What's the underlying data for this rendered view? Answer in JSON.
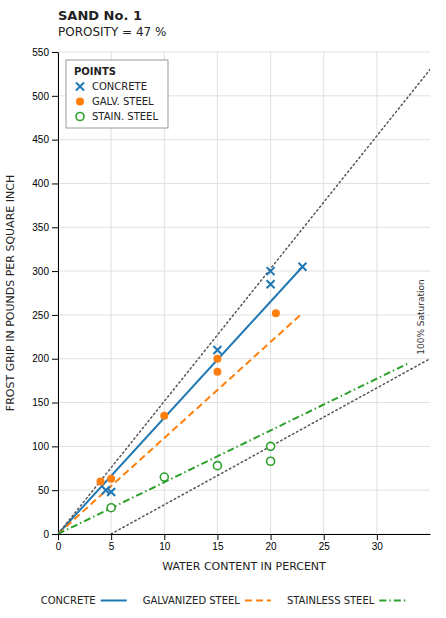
{
  "chart_data": {
    "type": "scatter",
    "title": [
      "SAND No. 1",
      "POROSITY = 47 %"
    ],
    "x_label": "WATER CONTENT IN PERCENT",
    "y_label": "FROST GRIP IN POUNDS PER SQUARE INCH",
    "xlim": [
      0,
      35
    ],
    "ylim": [
      0,
      550
    ],
    "xticks": [
      0,
      5,
      10,
      15,
      20,
      25,
      30
    ],
    "yticks": [
      0,
      50,
      100,
      150,
      200,
      250,
      300,
      350,
      400,
      450,
      500,
      550
    ],
    "grid": true,
    "legend": "upper left",
    "annotations": [
      "POINTS",
      "100% Saturation"
    ],
    "series": [
      {
        "name": "CONCRETE",
        "type": "scatter",
        "marker": "x",
        "x": [
          4.5,
          5,
          15,
          20,
          20,
          23
        ],
        "values": [
          50,
          48,
          210,
          285,
          300,
          305
        ]
      },
      {
        "name": "GALV. STEEL",
        "type": "scatter",
        "marker": "circle",
        "x": [
          4,
          5,
          10,
          15,
          15,
          20.5
        ],
        "values": [
          60,
          63,
          135,
          185,
          200,
          252
        ]
      },
      {
        "name": "STAIN. STEEL",
        "type": "scatter",
        "marker": "open-circle",
        "x": [
          5,
          10,
          15,
          20,
          20
        ],
        "values": [
          30,
          65,
          78,
          83,
          100
        ]
      },
      {
        "name": "CONCRETE",
        "type": "line",
        "line_style": "solid",
        "x": [
          0,
          23
        ],
        "values": [
          0,
          305
        ]
      },
      {
        "name": "GALVANIZED STEEL",
        "type": "line",
        "line_style": "dashed",
        "x": [
          0,
          23
        ],
        "values": [
          0,
          252
        ]
      },
      {
        "name": "STAINLESS STEEL",
        "type": "line",
        "line_style": "dashdot",
        "x": [
          0,
          33
        ],
        "values": [
          0,
          195
        ]
      },
      {
        "type": "line",
        "line_style": "dotted",
        "x": [
          0,
          35
        ],
        "values": [
          0,
          530
        ]
      },
      {
        "type": "line",
        "line_style": "dotted",
        "x": [
          5,
          35
        ],
        "values": [
          0,
          200
        ]
      }
    ]
  }
}
